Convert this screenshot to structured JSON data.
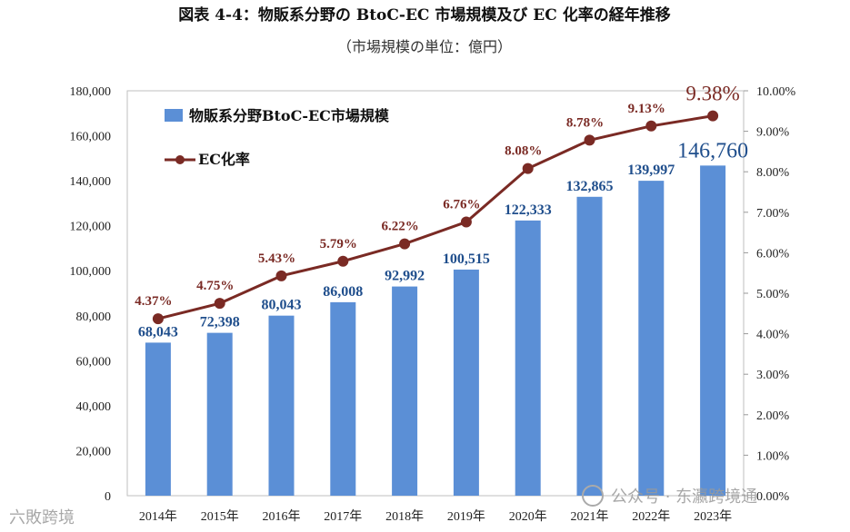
{
  "chart_data": {
    "type": "bar+line",
    "title": "図表 4-4：物販系分野の BtoC-EC 市場規模及び EC 化率の経年推移",
    "subtitle": "（市場規模の単位：億円）",
    "categories": [
      "2014年",
      "2015年",
      "2016年",
      "2017年",
      "2018年",
      "2019年",
      "2020年",
      "2021年",
      "2022年",
      "2023年"
    ],
    "series": [
      {
        "name": "物販系分野BtoC-EC市場規模",
        "kind": "bar",
        "axis": "left",
        "values": [
          68043,
          72398,
          80043,
          86008,
          92992,
          100515,
          122333,
          132865,
          139997,
          146760
        ],
        "labels": [
          "68,043",
          "72,398",
          "80,043",
          "86,008",
          "92,992",
          "100,515",
          "122,333",
          "132,865",
          "139,997",
          "146,760"
        ]
      },
      {
        "name": "EC化率",
        "kind": "line",
        "axis": "right",
        "values": [
          4.37,
          4.75,
          5.43,
          5.79,
          6.22,
          6.76,
          8.08,
          8.78,
          9.13,
          9.38
        ],
        "labels": [
          "4.37%",
          "4.75%",
          "5.43%",
          "5.79%",
          "6.22%",
          "6.76%",
          "8.08%",
          "8.78%",
          "9.13%",
          "9.38%"
        ]
      }
    ],
    "y_left": {
      "min": 0,
      "max": 180000,
      "ticks": [
        "0",
        "20,000",
        "40,000",
        "60,000",
        "80,000",
        "100,000",
        "120,000",
        "140,000",
        "160,000",
        "180,000"
      ]
    },
    "y_right": {
      "min": 0,
      "max": 10,
      "ticks": [
        "0.00%",
        "1.00%",
        "2.00%",
        "3.00%",
        "4.00%",
        "5.00%",
        "6.00%",
        "7.00%",
        "8.00%",
        "9.00%",
        "10.00%"
      ]
    },
    "legend_position": "top-left",
    "colors": {
      "bar": "#5b8fd6",
      "line": "#7a2a24",
      "bar_label": "#1f4e8c"
    }
  },
  "watermark": {
    "left": "六敗跨境",
    "right": "公众号 · 东瀛跨境通"
  }
}
